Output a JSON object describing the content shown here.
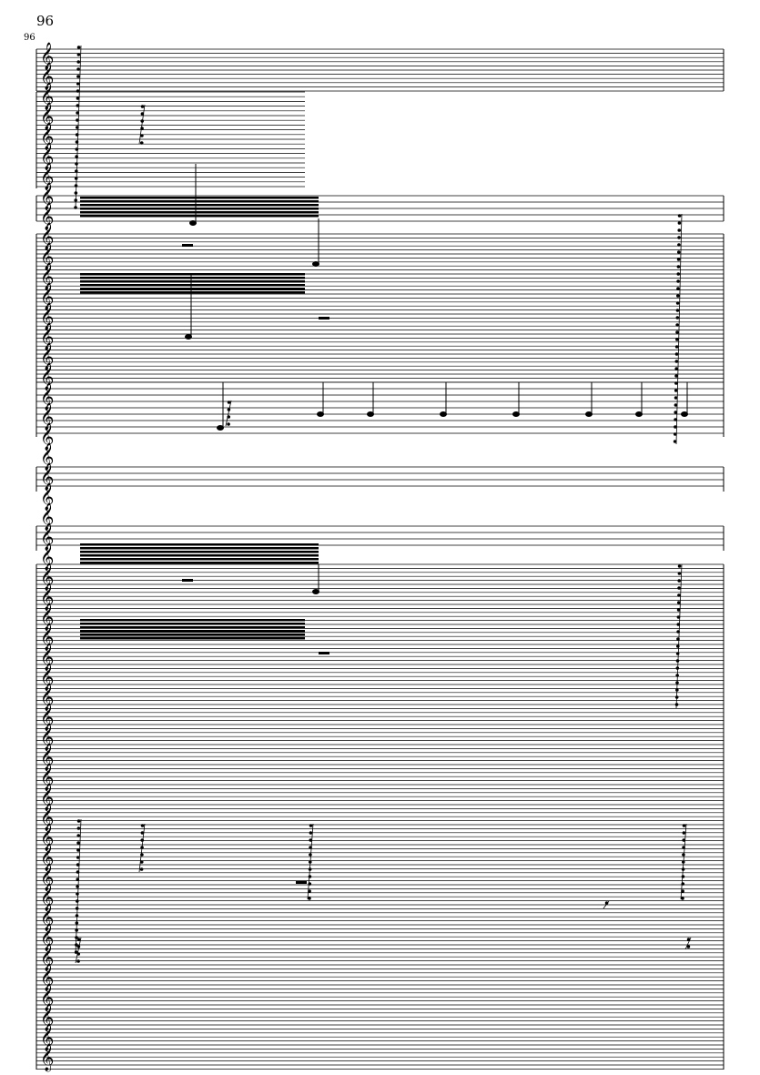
{
  "page": {
    "page_number": "96",
    "measure_number": "96"
  },
  "colors": {
    "ink": "#000000",
    "paper": "#ffffff"
  },
  "icons": {
    "clef": "treble-clef-icon"
  }
}
